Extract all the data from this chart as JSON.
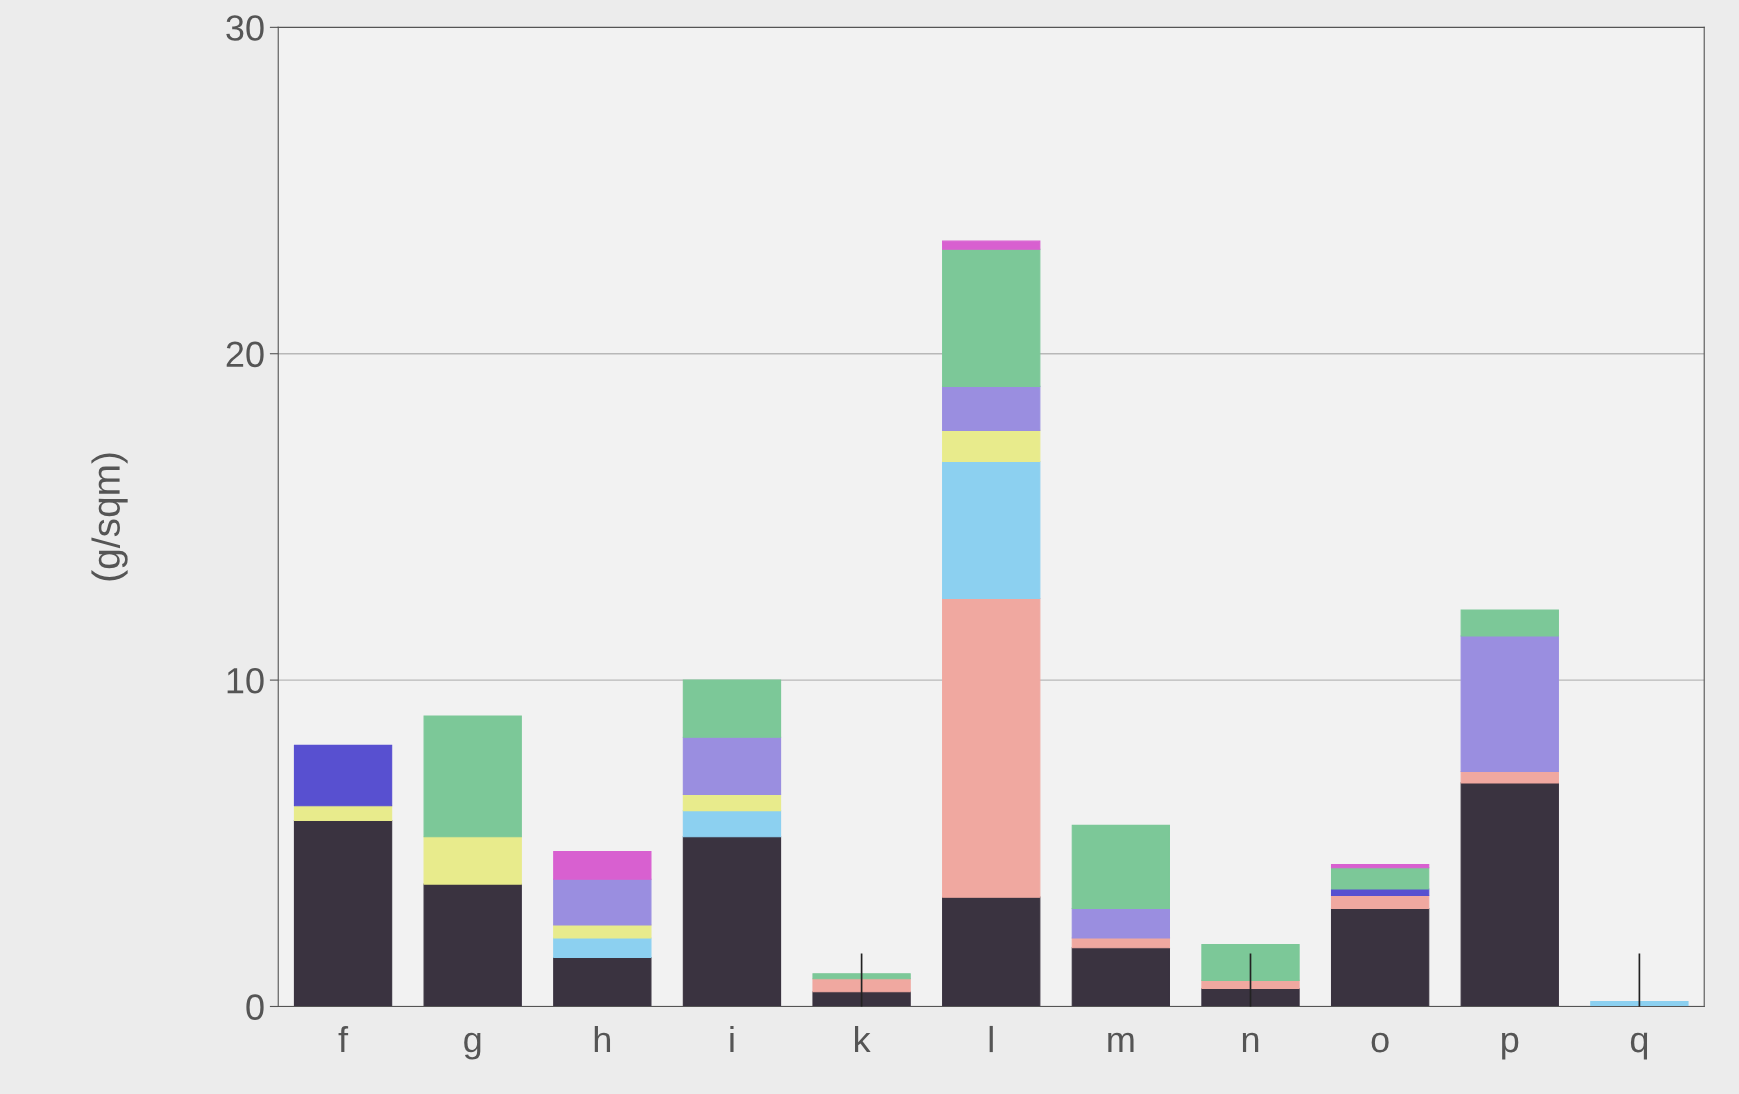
{
  "chart_data": {
    "type": "bar",
    "stacked": true,
    "ylabel": "(g/sqm)",
    "categories": [
      "f",
      "g",
      "h",
      "i",
      "k",
      "l",
      "m",
      "n",
      "o",
      "p",
      "q"
    ],
    "series": [
      {
        "color": "#3a3340",
        "values": [
          5.7,
          3.75,
          1.5,
          5.2,
          0.45,
          3.35,
          1.8,
          0.55,
          3.0,
          6.85,
          null
        ]
      },
      {
        "color": "#f0a8a0",
        "values": [
          null,
          null,
          null,
          null,
          0.4,
          9.15,
          0.3,
          0.25,
          0.4,
          0.35,
          null
        ]
      },
      {
        "color": "#8cd0f0",
        "values": [
          null,
          null,
          0.6,
          0.8,
          null,
          4.2,
          null,
          null,
          null,
          null,
          0.15
        ],
        "errors": [
          null,
          null,
          null,
          null,
          null,
          null,
          null,
          null,
          null,
          null,
          [
            0,
            1.6
          ]
        ]
      },
      {
        "color": "#e8eb8c",
        "values": [
          0.45,
          1.45,
          0.4,
          0.5,
          null,
          0.95,
          null,
          null,
          null,
          null,
          null
        ]
      },
      {
        "color": "#5850d0",
        "values": [
          1.85,
          null,
          null,
          null,
          null,
          null,
          null,
          null,
          0.2,
          null,
          null
        ]
      },
      {
        "color": "#9a8ee0",
        "values": [
          null,
          null,
          1.4,
          1.75,
          null,
          1.35,
          0.9,
          null,
          null,
          4.15,
          null
        ]
      },
      {
        "color": "#7cc898",
        "values": [
          null,
          3.7,
          null,
          1.75,
          0.15,
          4.2,
          2.55,
          1.1,
          0.65,
          0.8,
          null
        ],
        "errors": [
          null,
          null,
          null,
          null,
          [
            0,
            1.6
          ],
          null,
          null,
          [
            0,
            1.6
          ],
          null,
          null,
          null
        ]
      },
      {
        "color": "#d860d0",
        "values": [
          null,
          null,
          0.85,
          null,
          null,
          0.25,
          null,
          null,
          0.1,
          null,
          null
        ]
      }
    ],
    "ylim": [
      0,
      30
    ],
    "yticks": [
      0,
      10,
      20,
      30
    ],
    "grid": "y",
    "legend": false
  }
}
